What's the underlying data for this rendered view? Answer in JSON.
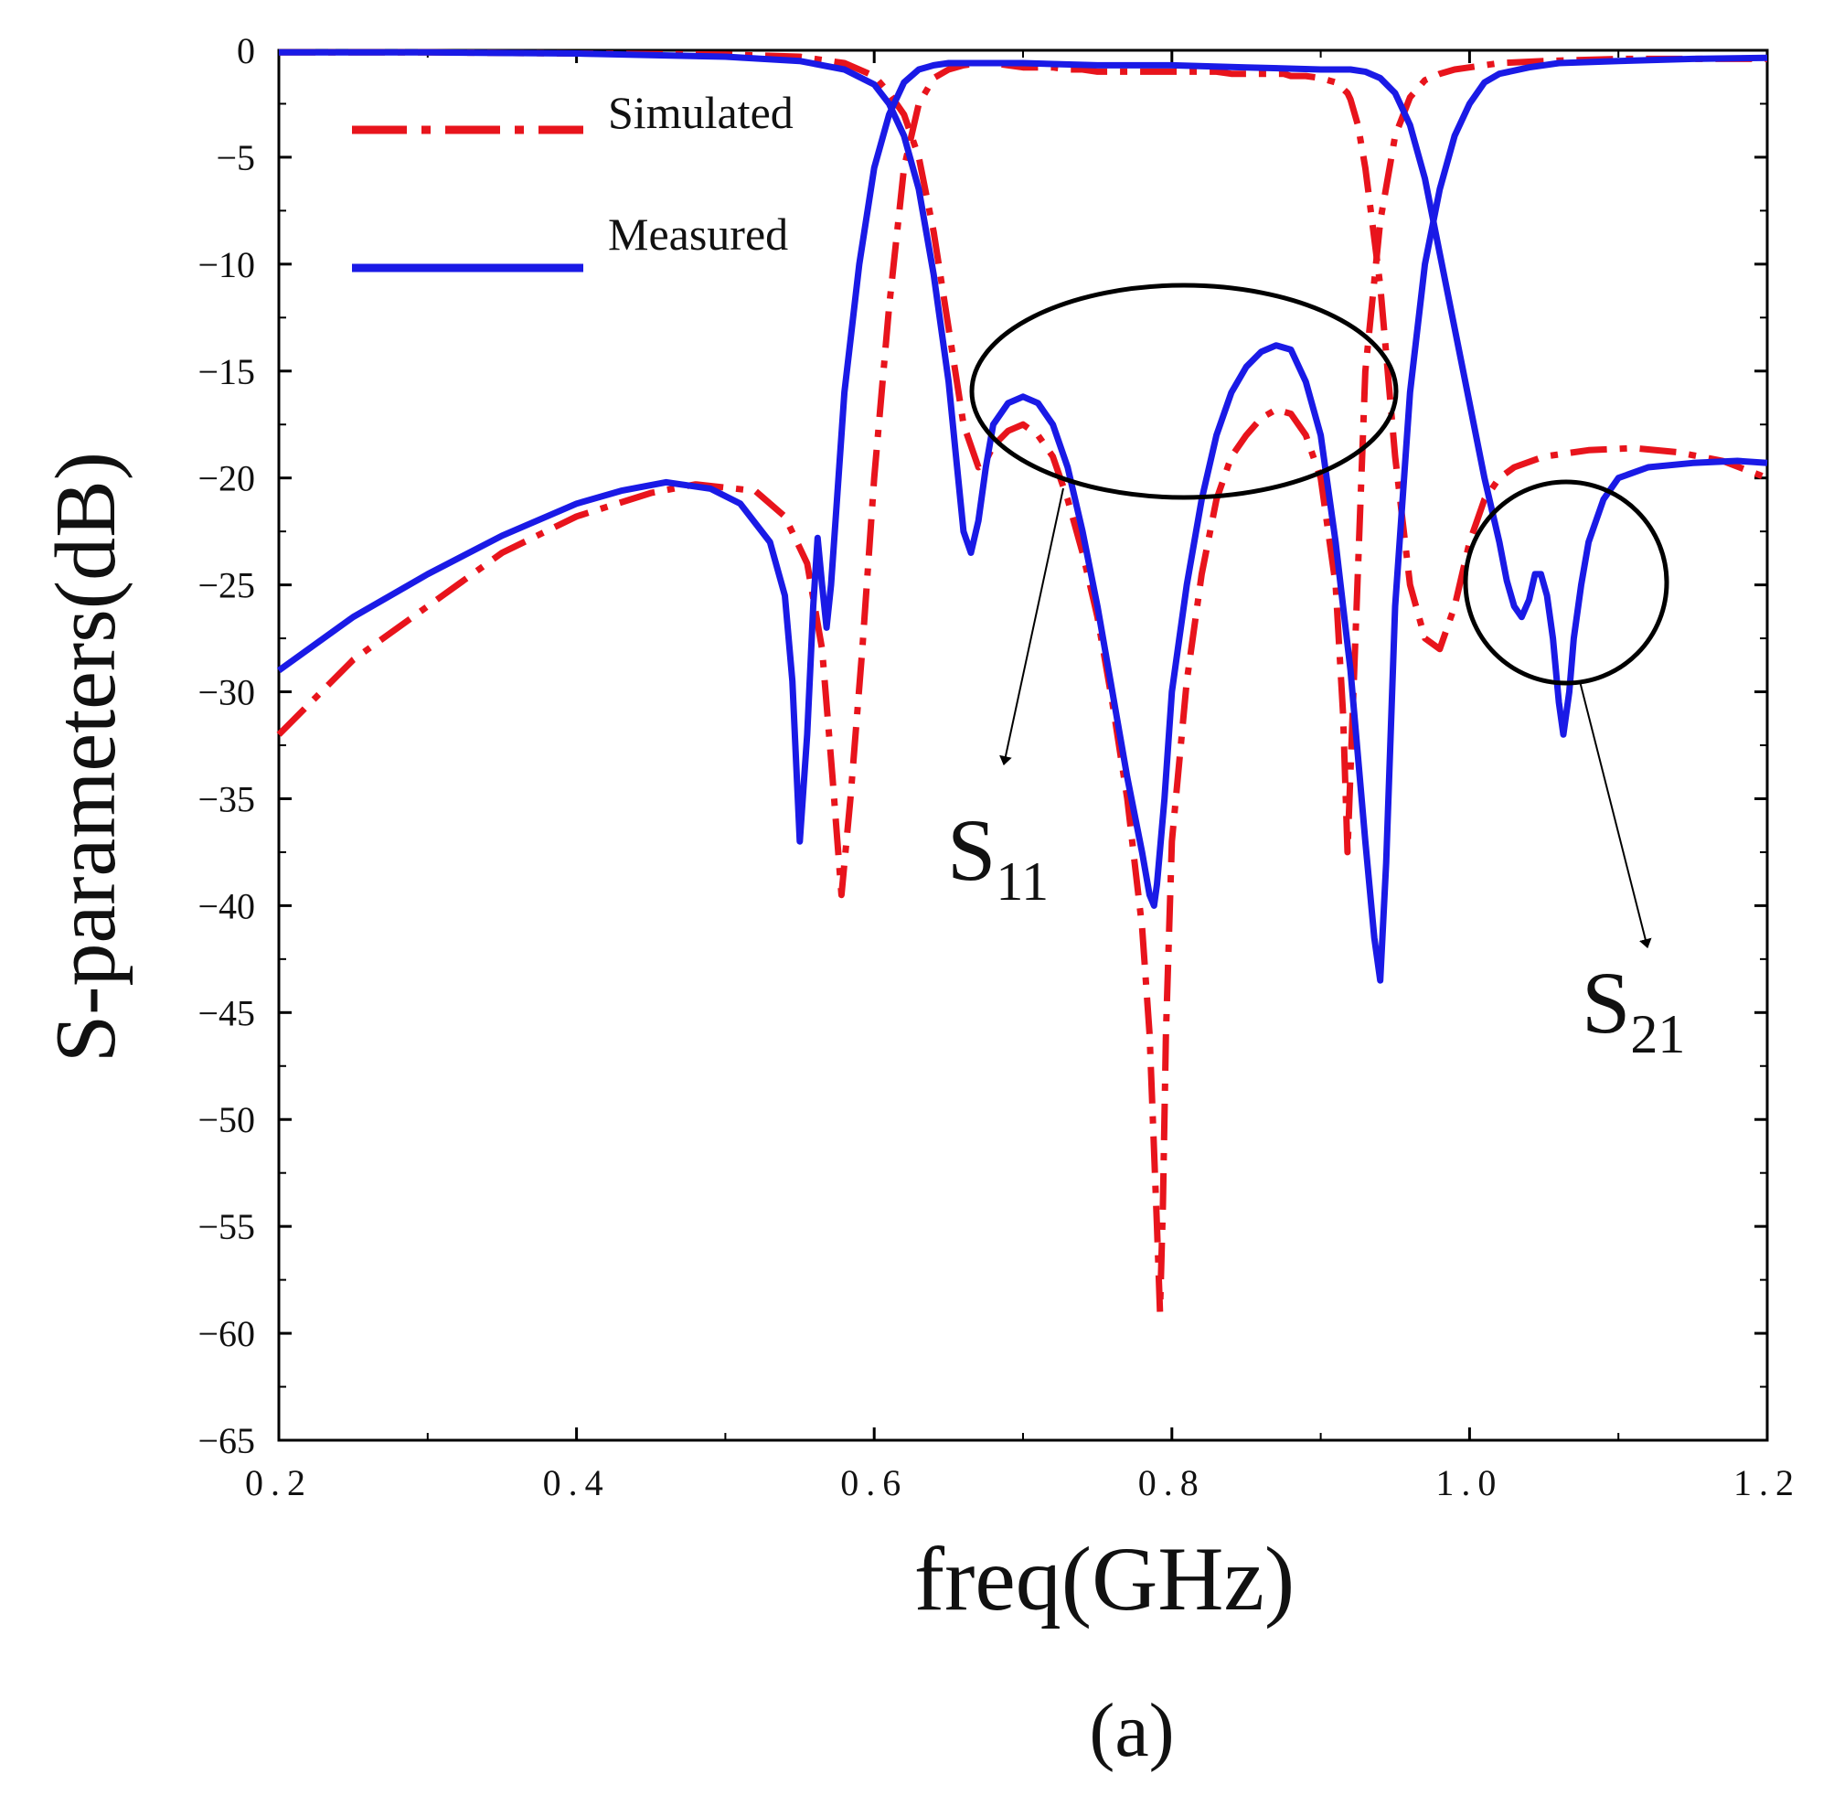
{
  "chart_data": {
    "type": "line",
    "title": "",
    "subplot_label": "(a)",
    "xlabel": "freq(GHz)",
    "ylabel": "S-parameters(dB)",
    "xlim": [
      0.2,
      1.2
    ],
    "ylim": [
      -65,
      0
    ],
    "grid": false,
    "legend_position": "top-left",
    "x_ticks": [
      0.2,
      0.4,
      0.6,
      0.8,
      1.0,
      1.2
    ],
    "x_tick_labels": [
      "0.2",
      "0.4",
      "0.6",
      "0.8",
      "1.0",
      "1.2"
    ],
    "y_ticks": [
      0,
      -5,
      -10,
      -15,
      -20,
      -25,
      -30,
      -35,
      -40,
      -45,
      -50,
      -55,
      -60,
      -65
    ],
    "y_tick_labels": [
      "0",
      "−5",
      "−10",
      "−15",
      "−20",
      "−25",
      "−30",
      "−35",
      "−40",
      "−45",
      "−50",
      "−55",
      "−60",
      "−65"
    ],
    "series": [
      {
        "name": "Simulated",
        "color": "#e8141c",
        "dash": "dashdot",
        "curves": [
          {
            "id": "S11",
            "x": [
              0.2,
              0.25,
              0.3,
              0.35,
              0.4,
              0.45,
              0.48,
              0.52,
              0.54,
              0.555,
              0.565,
              0.572,
              0.578,
              0.584,
              0.592,
              0.6,
              0.61,
              0.62,
              0.63,
              0.64,
              0.65,
              0.66,
              0.67,
              0.68,
              0.69,
              0.7,
              0.71,
              0.72,
              0.73,
              0.74,
              0.75,
              0.76,
              0.77,
              0.78,
              0.785,
              0.79,
              0.793,
              0.796,
              0.8,
              0.805,
              0.81,
              0.82,
              0.83,
              0.84,
              0.85,
              0.86,
              0.87,
              0.875,
              0.88,
              0.89,
              0.9,
              0.905,
              0.91,
              0.915,
              0.918,
              0.92,
              0.925,
              0.93,
              0.94,
              0.95,
              0.96,
              0.97,
              0.98,
              0.99,
              1.0,
              1.01,
              1.02,
              1.03,
              1.05,
              1.08,
              1.11,
              1.14,
              1.17,
              1.2
            ],
            "y": [
              -32,
              -28.5,
              -26,
              -23.5,
              -21.8,
              -20.7,
              -20.3,
              -20.6,
              -21.8,
              -24,
              -28,
              -34,
              -39.5,
              -35,
              -28,
              -20,
              -12,
              -5.5,
              -2.5,
              -1.3,
              -0.9,
              -0.7,
              -0.6,
              -0.6,
              -0.7,
              -0.8,
              -0.8,
              -0.8,
              -0.9,
              -0.9,
              -1.0,
              -1.0,
              -1.0,
              -1.0,
              -1.0,
              -1.0,
              -1.0,
              -1.0,
              -1.0,
              -1.0,
              -1.0,
              -1.0,
              -1.0,
              -1.1,
              -1.1,
              -1.1,
              -1.1,
              -1.1,
              -1.2,
              -1.2,
              -1.3,
              -1.4,
              -1.5,
              -1.8,
              -2.0,
              -2.3,
              -3.5,
              -5.5,
              -11,
              -19,
              -25,
              -27.5,
              -28,
              -26,
              -23,
              -21,
              -20,
              -19.5,
              -19,
              -18.7,
              -18.6,
              -18.8,
              -19.2,
              -20
            ]
          },
          {
            "id": "S21",
            "x": [
              0.2,
              0.3,
              0.4,
              0.5,
              0.55,
              0.58,
              0.6,
              0.61,
              0.62,
              0.63,
              0.64,
              0.65,
              0.66,
              0.67,
              0.675,
              0.68,
              0.69,
              0.7,
              0.71,
              0.72,
              0.73,
              0.74,
              0.75,
              0.76,
              0.77,
              0.78,
              0.785,
              0.79,
              0.792,
              0.794,
              0.796,
              0.8,
              0.81,
              0.82,
              0.83,
              0.84,
              0.85,
              0.86,
              0.87,
              0.88,
              0.89,
              0.9,
              0.91,
              0.915,
              0.918,
              0.922,
              0.93,
              0.94,
              0.95,
              0.96,
              0.97,
              0.98,
              0.99,
              1.0,
              1.02,
              1.05,
              1.1,
              1.15,
              1.2
            ],
            "y": [
              -0.1,
              -0.1,
              -0.15,
              -0.2,
              -0.3,
              -0.6,
              -1.2,
              -2.0,
              -3.0,
              -5.0,
              -8.5,
              -13.0,
              -17.5,
              -19.5,
              -19.2,
              -18.5,
              -17.8,
              -17.5,
              -18,
              -19,
              -21,
              -23.5,
              -26.5,
              -30.5,
              -35,
              -41,
              -46,
              -55,
              -59,
              -54,
              -46,
              -37,
              -29.5,
              -24.5,
              -21,
              -19,
              -18,
              -17.2,
              -16.8,
              -17,
              -18,
              -20,
              -25,
              -31,
              -37.5,
              -30,
              -15,
              -8,
              -4,
              -2.2,
              -1.4,
              -1.1,
              -0.9,
              -0.8,
              -0.6,
              -0.5,
              -0.4,
              -0.4,
              -0.4
            ]
          }
        ]
      },
      {
        "name": "Measured",
        "color": "#1a1ae6",
        "dash": "solid",
        "curves": [
          {
            "id": "S21",
            "x": [
              0.2,
              0.25,
              0.3,
              0.35,
              0.4,
              0.43,
              0.46,
              0.49,
              0.51,
              0.53,
              0.54,
              0.545,
              0.55,
              0.555,
              0.559,
              0.562,
              0.565,
              0.568,
              0.571,
              0.574,
              0.58,
              0.59,
              0.6,
              0.61,
              0.62,
              0.63,
              0.64,
              0.65,
              0.66,
              0.68,
              0.7,
              0.75,
              0.8,
              0.85,
              0.9,
              0.92,
              0.93,
              0.94,
              0.95,
              0.96,
              0.97,
              0.98,
              0.99,
              1.0,
              1.01,
              1.02,
              1.025,
              1.03,
              1.035,
              1.04,
              1.044,
              1.048,
              1.052,
              1.056,
              1.06,
              1.063,
              1.067,
              1.07,
              1.075,
              1.08,
              1.09,
              1.1,
              1.12,
              1.15,
              1.18,
              1.2
            ],
            "y": [
              -29,
              -26.5,
              -24.5,
              -22.7,
              -21.2,
              -20.6,
              -20.2,
              -20.5,
              -21.2,
              -23,
              -25.5,
              -29.5,
              -37,
              -32,
              -26,
              -22.8,
              -25,
              -27,
              -25,
              -22,
              -16,
              -10,
              -5.5,
              -3,
              -1.5,
              -0.9,
              -0.7,
              -0.6,
              -0.6,
              -0.6,
              -0.6,
              -0.7,
              -0.7,
              -0.8,
              -0.9,
              -0.9,
              -1.0,
              -1.3,
              -2.0,
              -3.5,
              -6.0,
              -9.5,
              -13,
              -16.5,
              -20,
              -23,
              -24.8,
              -26,
              -26.5,
              -25.7,
              -24.5,
              -24.5,
              -25.5,
              -27.5,
              -30.5,
              -32,
              -30,
              -27.5,
              -25,
              -23,
              -21,
              -20,
              -19.5,
              -19.3,
              -19.2,
              -19.3
            ]
          },
          {
            "id": "S11",
            "x": [
              0.2,
              0.3,
              0.4,
              0.5,
              0.55,
              0.58,
              0.6,
              0.61,
              0.62,
              0.63,
              0.64,
              0.65,
              0.655,
              0.66,
              0.665,
              0.67,
              0.675,
              0.68,
              0.69,
              0.7,
              0.71,
              0.72,
              0.73,
              0.74,
              0.75,
              0.76,
              0.77,
              0.78,
              0.785,
              0.788,
              0.79,
              0.795,
              0.8,
              0.81,
              0.82,
              0.83,
              0.84,
              0.85,
              0.86,
              0.87,
              0.88,
              0.89,
              0.9,
              0.91,
              0.92,
              0.93,
              0.936,
              0.94,
              0.944,
              0.95,
              0.96,
              0.97,
              0.98,
              0.99,
              1.0,
              1.01,
              1.02,
              1.04,
              1.06,
              1.1,
              1.15,
              1.2
            ],
            "y": [
              -0.1,
              -0.1,
              -0.15,
              -0.3,
              -0.5,
              -0.9,
              -1.6,
              -2.5,
              -4,
              -6.5,
              -10.5,
              -15.5,
              -19,
              -22.5,
              -23.5,
              -22,
              -19.5,
              -17.5,
              -16.5,
              -16.2,
              -16.5,
              -17.5,
              -19.5,
              -22.5,
              -26,
              -30,
              -34,
              -37.5,
              -39.5,
              -40,
              -39,
              -35,
              -30,
              -25,
              -21,
              -18,
              -16,
              -14.8,
              -14.1,
              -13.8,
              -14,
              -15.5,
              -18,
              -23,
              -29,
              -37,
              -41.5,
              -43.5,
              -38,
              -26,
              -16,
              -10,
              -6.5,
              -4,
              -2.5,
              -1.5,
              -1.1,
              -0.8,
              -0.6,
              -0.5,
              -0.4,
              -0.35
            ]
          }
        ]
      }
    ],
    "annotations": [
      {
        "id": "S11",
        "text_main": "S",
        "text_sub": "11"
      },
      {
        "id": "S21",
        "text_main": "S",
        "text_sub": "21"
      }
    ]
  }
}
